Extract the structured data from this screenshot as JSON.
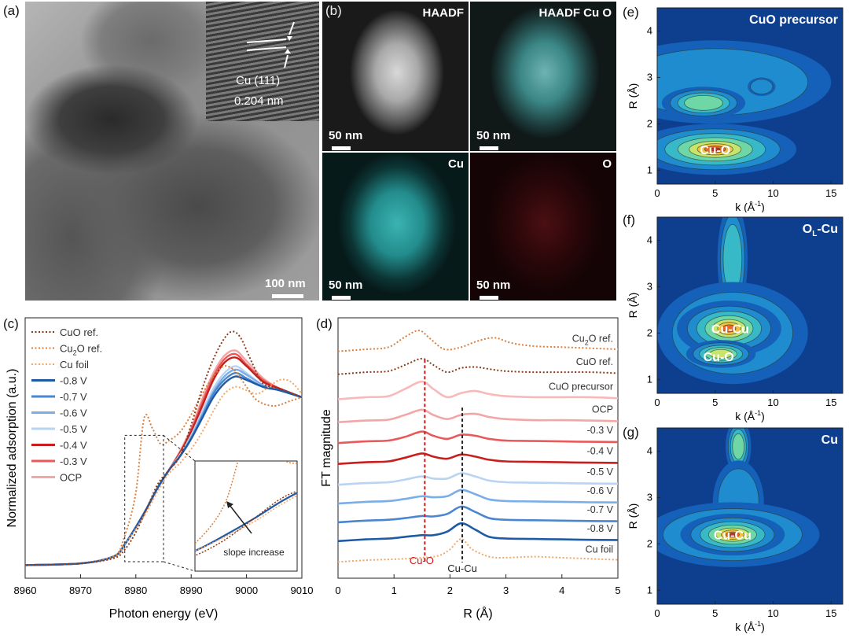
{
  "panel_a": {
    "label": "(a)",
    "inset_label_1": "Cu (111)",
    "inset_label_2": "0.204 nm",
    "scalebar": "100 nm"
  },
  "panel_b": {
    "label": "(b)",
    "tiles": [
      {
        "title": "HAADF",
        "scalebar": "50 nm"
      },
      {
        "title": "HAADF Cu O",
        "scalebar": "50 nm"
      },
      {
        "title": "Cu",
        "scalebar": "50 nm"
      },
      {
        "title": "O",
        "scalebar": "50 nm"
      }
    ]
  },
  "colors": {
    "cuo_ref": "#8b3a1a",
    "cu2o_ref": "#d9803f",
    "cu_foil": "#f0a868",
    "v08": "#1f5aa6",
    "v07": "#4a86d0",
    "v06": "#7aaee6",
    "v05": "#b9d4f2",
    "v04": "#c81e1e",
    "v03": "#e85a5a",
    "ocp": "#f3a6a6",
    "cuo_precursor": "#f7b9b9"
  },
  "chart_data": [
    {
      "id": "c",
      "type": "line",
      "panel_label": "(c)",
      "xlabel": "Photon energy (eV)",
      "ylabel": "Normalized adsorption (a.u.)",
      "xlim": [
        8960,
        9010
      ],
      "xticks": [
        "8960",
        "8970",
        "8980",
        "8990",
        "9000",
        "9010"
      ],
      "inset_annotation": "slope increase",
      "series": [
        {
          "name": "CuO ref.",
          "style": "dotted",
          "color_key": "cuo_ref",
          "x": [
            8960,
            8970,
            8976,
            8978,
            8980,
            8982,
            8984,
            8986,
            8988,
            8990,
            8992,
            8994,
            8996,
            8997.5,
            8999,
            9001,
            9003,
            9006,
            9010
          ],
          "y": [
            0.03,
            0.04,
            0.07,
            0.12,
            0.22,
            0.36,
            0.5,
            0.58,
            0.66,
            0.84,
            1.05,
            1.22,
            1.34,
            1.38,
            1.34,
            1.2,
            1.08,
            1.05,
            1.0
          ]
        },
        {
          "name": "Cu2O ref.",
          "style": "dotted",
          "color_key": "cu2o_ref",
          "x": [
            8960,
            8970,
            8976,
            8978,
            8980,
            8981.5,
            8983,
            8984.5,
            8986,
            8988,
            8990,
            8992,
            8994,
            8996,
            8998,
            9000,
            9002,
            9005,
            9008,
            9010
          ],
          "y": [
            0.03,
            0.04,
            0.08,
            0.2,
            0.45,
            0.88,
            0.82,
            0.73,
            0.75,
            0.8,
            0.9,
            1.02,
            1.12,
            1.18,
            1.15,
            1.06,
            0.98,
            0.95,
            0.98,
            1.0
          ]
        },
        {
          "name": "Cu foil",
          "style": "dotted",
          "color_key": "cu_foil",
          "x": [
            8960,
            8970,
            8976,
            8978,
            8980,
            8982,
            8984,
            8986,
            8988,
            8990,
            8992,
            8994,
            8996,
            8998,
            9000,
            9002,
            9004,
            9006,
            9008,
            9010
          ],
          "y": [
            0.03,
            0.04,
            0.08,
            0.15,
            0.24,
            0.34,
            0.46,
            0.56,
            0.62,
            0.7,
            0.8,
            0.92,
            1.02,
            1.06,
            1.04,
            1.02,
            1.06,
            1.1,
            1.09,
            1.02
          ]
        },
        {
          "name": "-0.8 V",
          "style": "solid",
          "color_key": "v08",
          "x": [
            8960,
            8970,
            8976,
            8978,
            8980,
            8982,
            8984,
            8986,
            8988,
            8990,
            8992,
            8994,
            8996,
            8998,
            9000,
            9003,
            9006,
            9010
          ],
          "y": [
            0.03,
            0.04,
            0.08,
            0.15,
            0.25,
            0.36,
            0.48,
            0.58,
            0.66,
            0.76,
            0.88,
            1.0,
            1.08,
            1.12,
            1.1,
            1.06,
            1.04,
            1.0
          ]
        },
        {
          "name": "-0.7 V",
          "style": "solid",
          "color_key": "v07",
          "x": [
            8960,
            8970,
            8976,
            8978,
            8980,
            8982,
            8984,
            8986,
            8988,
            8990,
            8992,
            8994,
            8996,
            8998,
            9000,
            9003,
            9006,
            9010
          ],
          "y": [
            0.03,
            0.04,
            0.08,
            0.15,
            0.25,
            0.36,
            0.48,
            0.58,
            0.66,
            0.76,
            0.89,
            1.02,
            1.1,
            1.14,
            1.11,
            1.06,
            1.04,
            1.0
          ]
        },
        {
          "name": "-0.6 V",
          "style": "solid",
          "color_key": "v06",
          "x": [
            8960,
            8970,
            8976,
            8978,
            8980,
            8982,
            8984,
            8986,
            8988,
            8990,
            8992,
            8994,
            8996,
            8998,
            9000,
            9003,
            9006,
            9010
          ],
          "y": [
            0.03,
            0.04,
            0.08,
            0.15,
            0.25,
            0.36,
            0.48,
            0.58,
            0.66,
            0.77,
            0.9,
            1.03,
            1.12,
            1.16,
            1.13,
            1.07,
            1.04,
            1.0
          ]
        },
        {
          "name": "-0.5 V",
          "style": "solid",
          "color_key": "v05",
          "x": [
            8960,
            8970,
            8976,
            8978,
            8980,
            8982,
            8984,
            8986,
            8988,
            8990,
            8992,
            8994,
            8996,
            8998,
            9000,
            9003,
            9006,
            9010
          ],
          "y": [
            0.03,
            0.04,
            0.08,
            0.15,
            0.25,
            0.36,
            0.48,
            0.58,
            0.67,
            0.78,
            0.92,
            1.05,
            1.14,
            1.18,
            1.14,
            1.07,
            1.04,
            1.0
          ]
        },
        {
          "name": "-0.4 V",
          "style": "solid",
          "color_key": "v04",
          "x": [
            8960,
            8970,
            8976,
            8978,
            8980,
            8982,
            8984,
            8986,
            8988,
            8990,
            8992,
            8994,
            8996,
            8998,
            9000,
            9003,
            9006,
            9010
          ],
          "y": [
            0.03,
            0.04,
            0.08,
            0.15,
            0.25,
            0.36,
            0.48,
            0.58,
            0.68,
            0.8,
            0.95,
            1.1,
            1.2,
            1.23,
            1.18,
            1.09,
            1.05,
            1.0
          ]
        },
        {
          "name": "-0.3 V",
          "style": "solid",
          "color_key": "v03",
          "x": [
            8960,
            8970,
            8976,
            8978,
            8980,
            8982,
            8984,
            8986,
            8988,
            8990,
            8992,
            8994,
            8996,
            8998,
            9000,
            9003,
            9006,
            9010
          ],
          "y": [
            0.03,
            0.04,
            0.08,
            0.15,
            0.25,
            0.36,
            0.48,
            0.58,
            0.68,
            0.81,
            0.97,
            1.12,
            1.22,
            1.25,
            1.19,
            1.1,
            1.05,
            1.0
          ]
        },
        {
          "name": "OCP",
          "style": "solid",
          "color_key": "ocp",
          "x": [
            8960,
            8970,
            8976,
            8978,
            8980,
            8982,
            8984,
            8986,
            8988,
            8990,
            8992,
            8994,
            8996,
            8998,
            9000,
            9003,
            9006,
            9010
          ],
          "y": [
            0.03,
            0.04,
            0.08,
            0.15,
            0.25,
            0.36,
            0.48,
            0.58,
            0.69,
            0.82,
            0.99,
            1.14,
            1.24,
            1.27,
            1.21,
            1.11,
            1.05,
            1.0
          ]
        }
      ]
    },
    {
      "id": "d",
      "type": "line",
      "panel_label": "(d)",
      "xlabel": "R (Å)",
      "ylabel": "FT magnitude",
      "xlim": [
        0,
        5
      ],
      "xticks": [
        "0",
        "1",
        "2",
        "3",
        "4",
        "5"
      ],
      "markers": [
        {
          "label": "Cu-O",
          "x": 1.55,
          "color_key": "v04"
        },
        {
          "label": "Cu-Cu",
          "x": 2.22,
          "color_key": "none"
        }
      ],
      "series": [
        {
          "name": "Cu2O ref.",
          "style": "dotted",
          "color_key": "cu2o_ref",
          "offset": 9.6,
          "x": [
            0,
            0.5,
            0.9,
            1.2,
            1.45,
            1.65,
            1.9,
            2.2,
            2.5,
            2.8,
            3.1,
            3.5,
            4.0,
            4.5,
            5.0
          ],
          "y": [
            0.0,
            0.1,
            0.2,
            0.7,
            1.0,
            0.6,
            0.1,
            0.2,
            0.5,
            0.65,
            0.4,
            0.25,
            0.2,
            0.15,
            0.1
          ]
        },
        {
          "name": "CuO ref.",
          "style": "dotted",
          "color_key": "cuo_ref",
          "offset": 8.5,
          "x": [
            0,
            0.5,
            0.9,
            1.2,
            1.5,
            1.7,
            1.95,
            2.2,
            2.45,
            2.7,
            3.0,
            3.5,
            4.0,
            4.5,
            5.0
          ],
          "y": [
            0.0,
            0.1,
            0.15,
            0.45,
            0.75,
            0.45,
            0.1,
            0.3,
            0.35,
            0.25,
            0.15,
            0.1,
            0.1,
            0.1,
            0.05
          ]
        },
        {
          "name": "CuO precursor",
          "style": "solid",
          "color_key": "cuo_precursor",
          "offset": 7.3,
          "x": [
            0,
            0.5,
            0.9,
            1.2,
            1.5,
            1.7,
            1.95,
            2.2,
            2.45,
            2.7,
            3.0,
            3.5,
            4.0,
            4.5,
            5.0
          ],
          "y": [
            0.0,
            0.1,
            0.15,
            0.5,
            0.85,
            0.5,
            0.1,
            0.3,
            0.4,
            0.25,
            0.15,
            0.1,
            0.1,
            0.1,
            0.05
          ]
        },
        {
          "name": "OCP",
          "style": "solid",
          "color_key": "ocp",
          "offset": 6.2,
          "x": [
            0,
            0.5,
            0.9,
            1.2,
            1.5,
            1.7,
            1.95,
            2.2,
            2.45,
            2.7,
            3.0,
            3.5,
            4.0,
            4.5,
            5.0
          ],
          "y": [
            0.0,
            0.08,
            0.12,
            0.35,
            0.6,
            0.35,
            0.15,
            0.35,
            0.4,
            0.25,
            0.15,
            0.1,
            0.1,
            0.08,
            0.05
          ]
        },
        {
          "name": "-0.3 V",
          "style": "solid",
          "color_key": "v03",
          "offset": 5.2,
          "x": [
            0,
            0.5,
            0.9,
            1.2,
            1.5,
            1.7,
            1.95,
            2.2,
            2.45,
            2.7,
            3.0,
            3.5,
            4.0,
            4.5,
            5.0
          ],
          "y": [
            0.0,
            0.08,
            0.12,
            0.3,
            0.55,
            0.35,
            0.2,
            0.4,
            0.35,
            0.2,
            0.12,
            0.1,
            0.08,
            0.06,
            0.05
          ]
        },
        {
          "name": "-0.4 V",
          "style": "solid",
          "color_key": "v04",
          "offset": 4.2,
          "x": [
            0,
            0.5,
            0.9,
            1.2,
            1.5,
            1.7,
            1.95,
            2.2,
            2.45,
            2.7,
            3.0,
            3.5,
            4.0,
            4.5,
            5.0
          ],
          "y": [
            0.0,
            0.08,
            0.12,
            0.3,
            0.5,
            0.35,
            0.25,
            0.45,
            0.35,
            0.2,
            0.12,
            0.1,
            0.08,
            0.06,
            0.05
          ]
        },
        {
          "name": "-0.5 V",
          "style": "solid",
          "color_key": "v05",
          "offset": 3.2,
          "x": [
            0,
            0.5,
            0.9,
            1.2,
            1.5,
            1.7,
            1.95,
            2.2,
            2.45,
            2.7,
            3.0,
            3.5,
            4.0,
            4.5,
            5.0
          ],
          "y": [
            0.0,
            0.08,
            0.12,
            0.25,
            0.4,
            0.3,
            0.3,
            0.55,
            0.4,
            0.2,
            0.12,
            0.1,
            0.08,
            0.06,
            0.05
          ]
        },
        {
          "name": "-0.6 V",
          "style": "solid",
          "color_key": "v06",
          "offset": 2.3,
          "x": [
            0,
            0.5,
            0.9,
            1.2,
            1.5,
            1.7,
            1.95,
            2.2,
            2.45,
            2.7,
            3.0,
            3.5,
            4.0,
            4.5,
            5.0
          ],
          "y": [
            0.0,
            0.08,
            0.12,
            0.22,
            0.35,
            0.3,
            0.35,
            0.65,
            0.45,
            0.2,
            0.12,
            0.1,
            0.08,
            0.06,
            0.05
          ]
        },
        {
          "name": "-0.7 V",
          "style": "solid",
          "color_key": "v07",
          "offset": 1.4,
          "x": [
            0,
            0.5,
            0.9,
            1.2,
            1.5,
            1.7,
            1.95,
            2.2,
            2.45,
            2.7,
            3.0,
            3.5,
            4.0,
            4.5,
            5.0
          ],
          "y": [
            0.0,
            0.08,
            0.12,
            0.2,
            0.3,
            0.28,
            0.4,
            0.75,
            0.5,
            0.2,
            0.12,
            0.1,
            0.08,
            0.06,
            0.05
          ]
        },
        {
          "name": "-0.8 V",
          "style": "solid",
          "color_key": "v08",
          "offset": 0.5,
          "x": [
            0,
            0.5,
            0.9,
            1.2,
            1.5,
            1.7,
            1.95,
            2.2,
            2.45,
            2.7,
            3.0,
            3.5,
            4.0,
            4.5,
            5.0
          ],
          "y": [
            0.0,
            0.08,
            0.12,
            0.2,
            0.28,
            0.28,
            0.45,
            0.85,
            0.55,
            0.2,
            0.12,
            0.1,
            0.08,
            0.06,
            0.05
          ]
        },
        {
          "name": "Cu foil",
          "style": "dotted",
          "color_key": "cu_foil",
          "offset": -0.5,
          "x": [
            0,
            0.5,
            0.9,
            1.2,
            1.5,
            1.8,
            2.0,
            2.2,
            2.4,
            2.7,
            3.0,
            3.5,
            4.0,
            4.5,
            5.0
          ],
          "y": [
            0.0,
            0.08,
            0.12,
            0.15,
            0.2,
            0.3,
            0.6,
            1.1,
            0.6,
            0.25,
            0.2,
            0.25,
            0.2,
            0.15,
            0.1
          ]
        }
      ]
    },
    {
      "id": "e",
      "type": "heatmap",
      "panel_label": "(e)",
      "title": "CuO precursor",
      "xlabel": "k (Å⁻¹)",
      "ylabel": "R (Å)",
      "xlim": [
        0,
        16
      ],
      "ylim": [
        0.7,
        4.5
      ],
      "xticks": [
        "0",
        "5",
        "10",
        "15"
      ],
      "yticks": [
        "1",
        "2",
        "3",
        "4"
      ],
      "peak_labels": [
        {
          "text": "Cu-O",
          "k": 5,
          "R": 1.45
        }
      ]
    },
    {
      "id": "f",
      "type": "heatmap",
      "panel_label": "(f)",
      "title": "OL-Cu",
      "xlabel": "k (Å⁻¹)",
      "ylabel": "R (Å)",
      "xlim": [
        0,
        16
      ],
      "ylim": [
        0.7,
        4.5
      ],
      "xticks": [
        "0",
        "5",
        "10",
        "15"
      ],
      "yticks": [
        "1",
        "2",
        "3",
        "4"
      ],
      "peak_labels": [
        {
          "text": "Cu-Cu",
          "k": 6.3,
          "R": 2.1
        },
        {
          "text": "Cu-O",
          "k": 5.3,
          "R": 1.5
        }
      ]
    },
    {
      "id": "g",
      "type": "heatmap",
      "panel_label": "(g)",
      "title": "Cu",
      "xlabel": "k (Å⁻¹)",
      "ylabel": "R (Å)",
      "xlim": [
        0,
        16
      ],
      "ylim": [
        0.7,
        4.5
      ],
      "xticks": [
        "0",
        "5",
        "10",
        "15"
      ],
      "yticks": [
        "1",
        "2",
        "3",
        "4"
      ],
      "peak_labels": [
        {
          "text": "Cu-Cu",
          "k": 6.5,
          "R": 2.2
        }
      ]
    }
  ]
}
